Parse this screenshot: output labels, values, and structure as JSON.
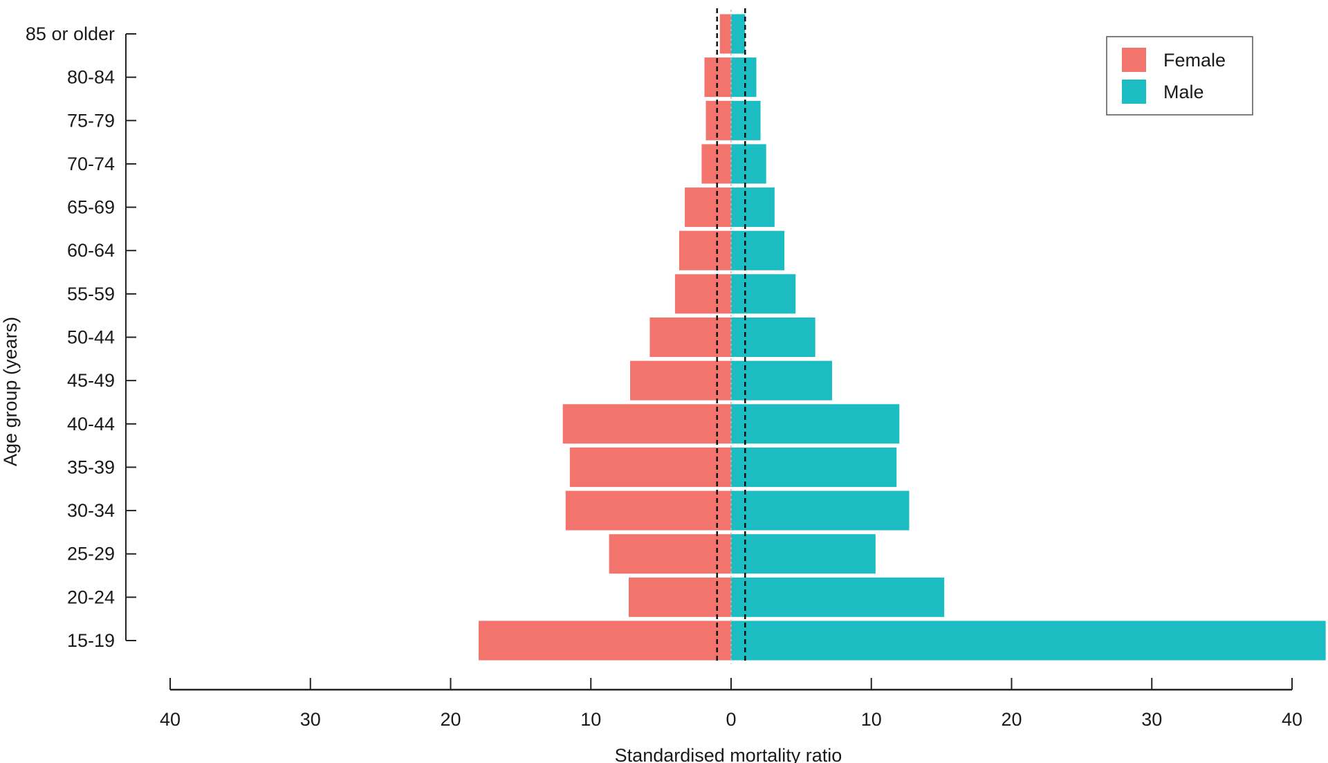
{
  "chart_data": {
    "type": "bar",
    "orientation": "horizontal-population-pyramid",
    "title": "",
    "xlabel": "Standardised mortality ratio",
    "ylabel": "Age group (years)",
    "xlim": [
      -40,
      40
    ],
    "x_ticks": [
      -40,
      -30,
      -20,
      -10,
      0,
      10,
      20,
      30,
      40
    ],
    "x_tick_labels": [
      "40",
      "30",
      "20",
      "10",
      "0",
      "10",
      "20",
      "30",
      "40"
    ],
    "reference_lines": [
      -1,
      1
    ],
    "categories": [
      "85 or older",
      "80-84",
      "75-79",
      "70-74",
      "65-69",
      "60-64",
      "55-59",
      "50-44",
      "45-49",
      "40-44",
      "35-39",
      "30-34",
      "25-29",
      "20-24",
      "15-19"
    ],
    "series": [
      {
        "name": "Female",
        "color": "#f2746c",
        "side": "left",
        "values": [
          0.8,
          1.9,
          1.8,
          2.1,
          3.3,
          3.7,
          4.0,
          5.8,
          7.2,
          12.0,
          11.5,
          11.8,
          8.7,
          7.3,
          18.0
        ]
      },
      {
        "name": "Male",
        "color": "#1bbdc2",
        "side": "right",
        "values": [
          1.0,
          1.8,
          2.1,
          2.5,
          3.1,
          3.8,
          4.6,
          6.0,
          7.2,
          12.0,
          11.8,
          12.7,
          10.3,
          15.2,
          42.4
        ]
      }
    ],
    "legend": {
      "placement": "top-right",
      "entries": [
        "Female",
        "Male"
      ]
    },
    "grid": false
  }
}
